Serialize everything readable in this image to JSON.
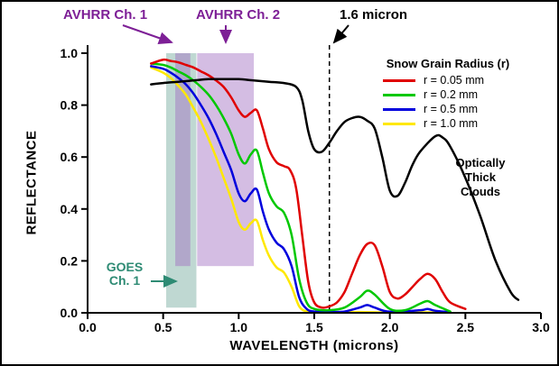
{
  "chart_data": {
    "type": "line",
    "title": "",
    "xlabel": "WAVELENGTH (microns)",
    "ylabel": "REFLECTANCE",
    "xlim": [
      0.0,
      3.0
    ],
    "ylim": [
      0.0,
      1.0
    ],
    "x_ticks": [
      0.0,
      0.5,
      1.0,
      1.5,
      2.0,
      2.5,
      3.0
    ],
    "y_ticks": [
      0.0,
      0.2,
      0.4,
      0.6,
      0.8,
      1.0
    ],
    "grid": false,
    "legend": {
      "title": "Snow Grain Radius (r)",
      "position": "top-right"
    },
    "vline": {
      "x": 1.6,
      "style": "dashed",
      "label": "1.6 micron",
      "color": "#000000"
    },
    "bands": [
      {
        "name": "GOES Ch. 1",
        "x_from": 0.52,
        "x_to": 0.72,
        "y_from": 0.02,
        "y_to": 1.0,
        "color": "#5f9e8f",
        "opacity": 0.4,
        "label_color": "#2e8b74"
      },
      {
        "name": "AVHRR Ch. 1",
        "x_from": 0.58,
        "x_to": 0.68,
        "y_from": 0.18,
        "y_to": 1.0,
        "color": "#a06cc0",
        "opacity": 0.45,
        "label_color": "#7d1f96"
      },
      {
        "name": "AVHRR Ch. 2",
        "x_from": 0.725,
        "x_to": 1.1,
        "y_from": 0.18,
        "y_to": 1.0,
        "color": "#a06cc0",
        "opacity": 0.45,
        "label_color": "#7d1f96"
      }
    ],
    "series": [
      {
        "name": "Optically Thick Clouds",
        "color": "#000000",
        "in_legend": false,
        "x": [
          0.42,
          0.5,
          0.6,
          0.7,
          0.8,
          0.9,
          1.0,
          1.1,
          1.2,
          1.3,
          1.38,
          1.42,
          1.46,
          1.5,
          1.55,
          1.6,
          1.65,
          1.7,
          1.75,
          1.8,
          1.85,
          1.9,
          1.95,
          2.0,
          2.05,
          2.1,
          2.15,
          2.2,
          2.3,
          2.35,
          2.4,
          2.5,
          2.6,
          2.7,
          2.8,
          2.85
        ],
        "y": [
          0.88,
          0.885,
          0.89,
          0.895,
          0.9,
          0.9,
          0.9,
          0.895,
          0.89,
          0.885,
          0.87,
          0.82,
          0.7,
          0.63,
          0.62,
          0.655,
          0.7,
          0.735,
          0.75,
          0.755,
          0.74,
          0.71,
          0.6,
          0.47,
          0.45,
          0.5,
          0.57,
          0.62,
          0.68,
          0.675,
          0.64,
          0.52,
          0.37,
          0.2,
          0.08,
          0.05
        ]
      },
      {
        "name": "r = 0.05 mm",
        "color": "#e00000",
        "in_legend": true,
        "x": [
          0.42,
          0.5,
          0.55,
          0.6,
          0.65,
          0.7,
          0.75,
          0.8,
          0.85,
          0.9,
          0.95,
          1.0,
          1.04,
          1.08,
          1.12,
          1.16,
          1.2,
          1.25,
          1.3,
          1.34,
          1.38,
          1.42,
          1.46,
          1.5,
          1.55,
          1.6,
          1.65,
          1.7,
          1.75,
          1.8,
          1.85,
          1.9,
          1.95,
          2.0,
          2.05,
          2.1,
          2.15,
          2.2,
          2.25,
          2.3,
          2.35,
          2.4,
          2.5
        ],
        "y": [
          0.96,
          0.975,
          0.97,
          0.965,
          0.955,
          0.945,
          0.93,
          0.915,
          0.895,
          0.87,
          0.83,
          0.78,
          0.755,
          0.77,
          0.78,
          0.71,
          0.63,
          0.58,
          0.565,
          0.55,
          0.48,
          0.3,
          0.12,
          0.04,
          0.02,
          0.025,
          0.04,
          0.08,
          0.15,
          0.22,
          0.265,
          0.26,
          0.18,
          0.08,
          0.055,
          0.07,
          0.1,
          0.13,
          0.15,
          0.13,
          0.08,
          0.04,
          0.015
        ]
      },
      {
        "name": "r = 0.2 mm",
        "color": "#00c800",
        "in_legend": true,
        "x": [
          0.42,
          0.5,
          0.55,
          0.6,
          0.65,
          0.7,
          0.75,
          0.8,
          0.85,
          0.9,
          0.95,
          1.0,
          1.04,
          1.08,
          1.12,
          1.16,
          1.2,
          1.25,
          1.3,
          1.35,
          1.4,
          1.45,
          1.5,
          1.6,
          1.7,
          1.8,
          1.85,
          1.9,
          2.0,
          2.1,
          2.2,
          2.25,
          2.3,
          2.4
        ],
        "y": [
          0.96,
          0.955,
          0.945,
          0.93,
          0.915,
          0.895,
          0.87,
          0.84,
          0.8,
          0.75,
          0.69,
          0.61,
          0.575,
          0.61,
          0.625,
          0.54,
          0.46,
          0.41,
          0.385,
          0.3,
          0.13,
          0.04,
          0.015,
          0.01,
          0.02,
          0.06,
          0.085,
          0.07,
          0.015,
          0.01,
          0.035,
          0.045,
          0.03,
          0.005
        ]
      },
      {
        "name": "r = 0.5 mm",
        "color": "#0000dd",
        "in_legend": true,
        "x": [
          0.42,
          0.5,
          0.55,
          0.6,
          0.65,
          0.7,
          0.75,
          0.8,
          0.85,
          0.9,
          0.95,
          1.0,
          1.04,
          1.08,
          1.12,
          1.16,
          1.2,
          1.25,
          1.3,
          1.35,
          1.4,
          1.45,
          1.5,
          1.6,
          1.7,
          1.8,
          1.85,
          1.9,
          2.0,
          2.2,
          2.25,
          2.3,
          2.4
        ],
        "y": [
          0.95,
          0.94,
          0.925,
          0.905,
          0.88,
          0.845,
          0.8,
          0.75,
          0.69,
          0.62,
          0.55,
          0.46,
          0.43,
          0.46,
          0.475,
          0.39,
          0.32,
          0.27,
          0.245,
          0.18,
          0.06,
          0.015,
          0.005,
          0.003,
          0.005,
          0.02,
          0.03,
          0.02,
          0.004,
          0.01,
          0.015,
          0.008,
          0.002
        ]
      },
      {
        "name": "r = 1.0 mm",
        "color": "#ffe800",
        "in_legend": true,
        "x": [
          0.42,
          0.5,
          0.55,
          0.6,
          0.65,
          0.7,
          0.75,
          0.8,
          0.85,
          0.9,
          0.95,
          1.0,
          1.04,
          1.08,
          1.12,
          1.16,
          1.2,
          1.25,
          1.3,
          1.35,
          1.4,
          1.45,
          1.5,
          1.6,
          1.8,
          2.0,
          2.2,
          2.4
        ],
        "y": [
          0.945,
          0.925,
          0.905,
          0.875,
          0.84,
          0.79,
          0.735,
          0.67,
          0.6,
          0.52,
          0.44,
          0.35,
          0.32,
          0.345,
          0.355,
          0.28,
          0.22,
          0.175,
          0.155,
          0.1,
          0.025,
          0.005,
          0.002,
          0.001,
          0.003,
          0.001,
          0.002,
          0.001
        ]
      }
    ]
  },
  "annotations": {
    "avhrr_ch1": "AVHRR Ch. 1",
    "avhrr_ch2": "AVHRR Ch. 2",
    "micron_16": "1.6 micron",
    "goes_line1": "GOES",
    "goes_line2": "Ch. 1",
    "clouds_line1": "Optically",
    "clouds_line2": "Thick",
    "clouds_line3": "Clouds"
  }
}
